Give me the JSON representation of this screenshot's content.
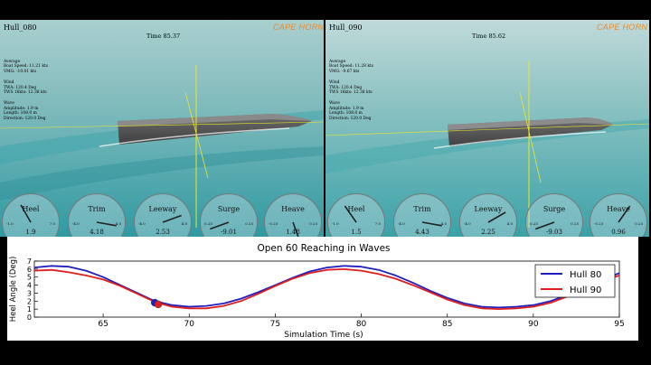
{
  "panels": [
    {
      "title": "Hull_080",
      "time": "Time 85.37",
      "brand": "CAPE HORN",
      "average_header": "Average",
      "boat_speed": "Boat Speed: 11.21 kts",
      "vmg": "VMG: -10.01 kts",
      "wind_header": "Wind",
      "twa": "TWA: 120.4 Deg",
      "tws": "TWS 16kts: 12.38 kts",
      "wave_header": "Wave",
      "amplitude": "Amplitude: 1.9 m",
      "length": "Length: 108.0 m",
      "direction": "Direction: 120.0 Deg",
      "gauges": [
        {
          "name": "Heel",
          "value": "1.9",
          "min": "-1.0",
          "max": "7.0",
          "needle": -30
        },
        {
          "name": "Trim",
          "value": "4.18",
          "min": "-4.0",
          "max": "4.0",
          "needle": 100
        },
        {
          "name": "Leeway",
          "value": "2.53",
          "min": "-4.0",
          "max": "4.0",
          "needle": 70
        },
        {
          "name": "Surge",
          "value": "-9.01",
          "min": "0.25",
          "max": "0.25",
          "needle": -110
        },
        {
          "name": "Heave",
          "value": "1.48",
          "min": "-0.25",
          "max": "0.25",
          "needle": 160
        }
      ]
    },
    {
      "title": "Hull_090",
      "time": "Time 85.62",
      "brand": "CAPE HORN",
      "average_header": "Average",
      "boat_speed": "Boat Speed: 11.28 kts",
      "vmg": "VMG: -9.67 kts",
      "wind_header": "Wind",
      "twa": "TWA: 120.4 Deg",
      "tws": "TWS 16kts: 12.38 kts",
      "wave_header": "Wave",
      "amplitude": "Amplitude: 1.9 m",
      "length": "Length: 108.0 m",
      "direction": "Direction: 120.0 Deg",
      "gauges": [
        {
          "name": "Heel",
          "value": "1.5",
          "min": "-1.0",
          "max": "7.0",
          "needle": -35
        },
        {
          "name": "Trim",
          "value": "4.43",
          "min": "-4.0",
          "max": "4.0",
          "needle": 100
        },
        {
          "name": "Leeway",
          "value": "2.25",
          "min": "-4.0",
          "max": "4.0",
          "needle": 60
        },
        {
          "name": "Surge",
          "value": "-9.03",
          "min": "0.25",
          "max": "0.25",
          "needle": -110
        },
        {
          "name": "Heave",
          "value": "0.96",
          "min": "-0.25",
          "max": "0.25",
          "needle": 35
        }
      ]
    }
  ],
  "colors": {
    "hull80": "#1f1fbf",
    "hull90": "#e01f1f",
    "water": "#3a9fa5"
  },
  "chart_data": {
    "type": "line",
    "title": "Open 60 Reaching in Waves",
    "xlabel": "Simulation Time (s)",
    "ylabel": "Heel Angle (Deg)",
    "xlim": [
      61,
      95
    ],
    "ylim": [
      0,
      7
    ],
    "xticks": [
      65,
      70,
      75,
      80,
      85,
      90,
      95
    ],
    "yticks": [
      0,
      1,
      2,
      3,
      4,
      5,
      6,
      7
    ],
    "legend": "right",
    "series": [
      {
        "name": "Hull 80",
        "x": [
          61,
          62,
          63,
          64,
          65,
          66,
          67,
          68,
          69,
          70,
          71,
          72,
          73,
          74,
          75,
          76,
          77,
          78,
          79,
          80,
          81,
          82,
          83,
          84,
          85,
          86,
          87,
          88,
          89,
          90,
          91,
          92,
          93,
          94,
          95
        ],
        "y": [
          6.2,
          6.4,
          6.3,
          5.8,
          5.0,
          4.0,
          3.0,
          2.0,
          1.5,
          1.3,
          1.4,
          1.7,
          2.3,
          3.1,
          4.0,
          4.9,
          5.7,
          6.2,
          6.4,
          6.3,
          5.9,
          5.2,
          4.3,
          3.3,
          2.4,
          1.7,
          1.3,
          1.2,
          1.3,
          1.5,
          2.0,
          2.8,
          3.8,
          4.7,
          5.5
        ]
      },
      {
        "name": "Hull 90",
        "x": [
          61,
          62,
          63,
          64,
          65,
          66,
          67,
          68,
          69,
          70,
          71,
          72,
          73,
          74,
          75,
          76,
          77,
          78,
          79,
          80,
          81,
          82,
          83,
          84,
          85,
          86,
          87,
          88,
          89,
          90,
          91,
          92,
          93,
          94,
          95
        ],
        "y": [
          5.8,
          5.9,
          5.6,
          5.2,
          4.7,
          3.9,
          2.9,
          1.9,
          1.3,
          1.1,
          1.1,
          1.4,
          2.0,
          2.9,
          3.9,
          4.8,
          5.5,
          5.9,
          6.0,
          5.8,
          5.4,
          4.8,
          4.0,
          3.1,
          2.2,
          1.5,
          1.1,
          1.0,
          1.1,
          1.3,
          1.8,
          2.6,
          3.6,
          4.5,
          5.2
        ]
      }
    ],
    "markers": [
      {
        "series": "Hull 80",
        "x": 68.0,
        "y": 1.8
      },
      {
        "series": "Hull 90",
        "x": 68.2,
        "y": 1.6
      }
    ]
  }
}
